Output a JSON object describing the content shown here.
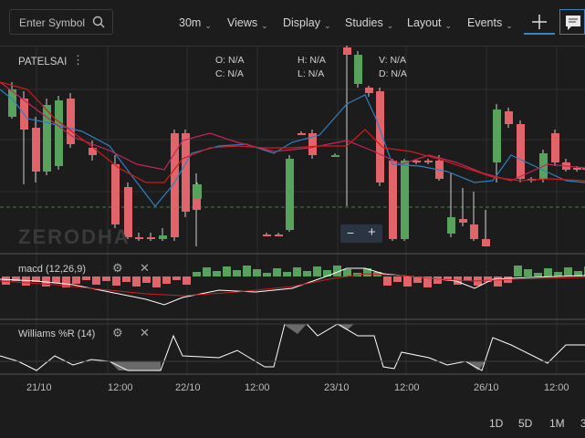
{
  "toolbar": {
    "search_placeholder": "Enter Symbol",
    "interval": "30m",
    "views": "Views",
    "display": "Display",
    "studies": "Studies",
    "layout": "Layout",
    "events": "Events"
  },
  "symbol": "PATELSAI",
  "ohlc": {
    "o": "O:",
    "o_val": "N/A",
    "h": "H:",
    "h_val": "N/A",
    "v": "V:",
    "v_val": "N/A",
    "c": "C:",
    "c_val": "N/A",
    "l": "L:",
    "l_val": "N/A",
    "d": "D:",
    "d_val": "N/A"
  },
  "watermark": "ZERODHA",
  "zoom": {
    "minus": "−",
    "plus": "+"
  },
  "macd_label": "macd (12,26,9)",
  "williams_label": "Williams %R (14)",
  "x_axis": [
    "21/10",
    "12:00",
    "22/10",
    "12:00",
    "23/10",
    "12:00",
    "26/10",
    "12:00"
  ],
  "ranges": [
    "1D",
    "5D",
    "1M",
    "3"
  ],
  "colors": {
    "up": "#57a35e",
    "down": "#e0646a",
    "bg": "#1c1c1c"
  }
}
